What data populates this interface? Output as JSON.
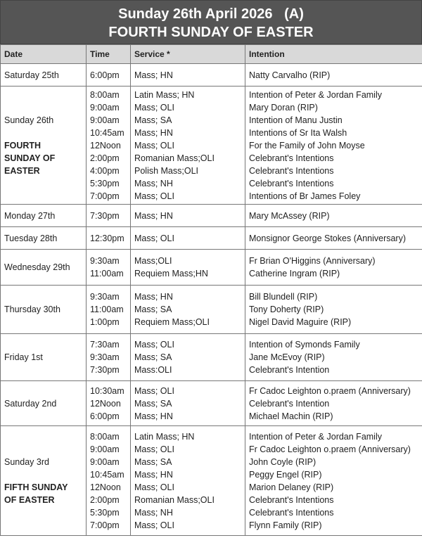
{
  "header": {
    "title": "Sunday 26th April 2026   (A)",
    "subtitle": "FOURTH SUNDAY OF EASTER"
  },
  "columns": [
    "Date",
    "Time",
    "Service *",
    "Intention"
  ],
  "rows": [
    {
      "date": "Saturday 25th",
      "feast": "",
      "h": 32,
      "entries": [
        [
          "6:00pm",
          "Mass; HN",
          "Natty Carvalho (RIP)"
        ]
      ]
    },
    {
      "date": "Sunday 26th",
      "feast": "FOURTH SUNDAY OF EASTER",
      "h": 168,
      "entries": [
        [
          "8:00am",
          "Latin Mass; HN",
          "Intention of Peter & Jordan Family"
        ],
        [
          "9:00am",
          "Mass; OLI",
          "Mary Doran (RIP)"
        ],
        [
          "9:00am",
          "Mass; SA",
          "Intention of Manu Justin"
        ],
        [
          "10:45am",
          "Mass; HN",
          "Intentions of Sr Ita Walsh"
        ],
        [
          "12Noon",
          "Mass; OLI",
          "For the Family of John Moyse"
        ],
        [
          "2:00pm",
          "Romanian Mass;OLI",
          "Celebrant's Intentions"
        ],
        [
          "4:00pm",
          "Polish Mass;OLI",
          "Celebrant's Intentions"
        ],
        [
          "5:30pm",
          "Mass; NH",
          "Celebrant's Intentions"
        ],
        [
          "7:00pm",
          "Mass; OLI",
          "Intentions of Br James Foley"
        ]
      ]
    },
    {
      "date": "Monday 27th",
      "feast": "",
      "h": 32,
      "entries": [
        [
          "7:30pm",
          "Mass; HN",
          "Mary McAssey (RIP)"
        ]
      ]
    },
    {
      "date": "Tuesday 28th",
      "feast": "",
      "h": 32,
      "entries": [
        [
          "12:30pm",
          "Mass; OLI",
          "Monsignor George Stokes (Anniversary)"
        ]
      ]
    },
    {
      "date": "Wednesday 29th",
      "feast": "",
      "h": 51,
      "entries": [
        [
          "9:30am",
          "Mass;OLI",
          "Fr Brian O'Higgins (Anniversary)"
        ],
        [
          "11:00am",
          "Requiem Mass;HN",
          "Catherine Ingram (RIP)"
        ]
      ]
    },
    {
      "date": "Thursday 30th",
      "feast": "",
      "h": 69,
      "entries": [
        [
          "9:30am",
          "Mass; HN",
          "Bill  Blundell (RIP)"
        ],
        [
          "11:00am",
          "Mass; SA",
          "Tony Doherty (RIP)"
        ],
        [
          "1:00pm",
          "Requiem Mass;OLI",
          "Nigel David Maguire (RIP)"
        ]
      ]
    },
    {
      "date": "Friday 1st",
      "feast": "",
      "h": 67,
      "entries": [
        [
          "7:30am",
          "Mass; OLI",
          "Intention of Symonds Family"
        ],
        [
          "9:30am",
          "Mass; SA",
          "Jane McEvoy (RIP)"
        ],
        [
          "7:30pm",
          "Mass:OLI",
          "Celebrant's Intention"
        ]
      ]
    },
    {
      "date": "Saturday 2nd",
      "feast": "",
      "h": 64,
      "entries": [
        [
          "10:30am",
          "Mass; OLI",
          "Fr Cadoc Leighton o.praem (Anniversary)"
        ],
        [
          "12Noon",
          "Mass; SA",
          "Celebrant's Intention"
        ],
        [
          "6:00pm",
          "Mass; HN",
          "Michael Machin (RIP)"
        ]
      ]
    },
    {
      "date": "Sunday 3rd",
      "feast": "FIFTH SUNDAY OF EASTER",
      "h": 156,
      "entries": [
        [
          "8:00am",
          "Latin Mass; HN",
          "Intention of Peter & Jordan Family"
        ],
        [
          "9:00am",
          "Mass; OLI",
          "Fr Cadoc Leighton o.praem (Anniversary)"
        ],
        [
          "9:00am",
          "Mass; SA",
          "John Coyle (RIP)"
        ],
        [
          "10:45am",
          "Mass; HN",
          "Peggy Engel (RIP)"
        ],
        [
          "12Noon",
          "Mass; OLI",
          "Marion Delaney (RIP)"
        ],
        [
          "2:00pm",
          "Romanian Mass;OLI",
          "Celebrant's Intentions"
        ],
        [
          "5:30pm",
          "Mass; NH",
          "Celebrant's Intentions"
        ],
        [
          "7:00pm",
          "Mass; OLI",
          "Flynn Family (RIP)"
        ]
      ]
    }
  ]
}
